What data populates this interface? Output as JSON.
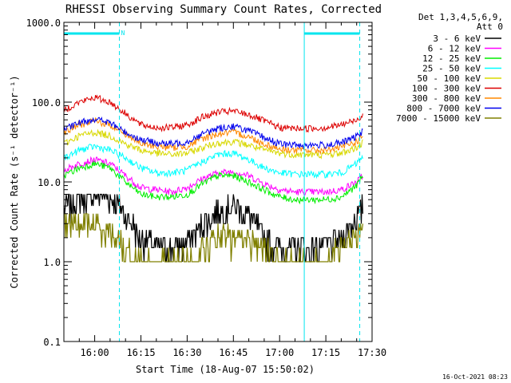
{
  "chart_data": {
    "type": "line",
    "title": "RHESSI Observing Summary Count Rates, Corrected",
    "xlabel": "Start Time (18-Aug-07 15:50:02)",
    "ylabel": "Corrected Count Rate (s⁻¹ detector⁻¹)",
    "yscale": "log",
    "ylim": [
      0.1,
      1000
    ],
    "xlim": [
      "15:50",
      "17:30"
    ],
    "xticks": [
      "16:00",
      "16:15",
      "16:30",
      "16:45",
      "17:00",
      "17:15",
      "17:30"
    ],
    "yticks": [
      "0.1",
      "1.0",
      "10.0",
      "100.0",
      "1000.0"
    ],
    "legend_header": [
      "Det 1,3,4,5,6,9,",
      "Att 0"
    ],
    "legend_position": "top-right",
    "timestamp": "16-Oct-2021 08:23",
    "flag_label": "N",
    "flag_bars": [
      {
        "start": "15:50",
        "end": "16:08"
      },
      {
        "start": "17:08",
        "end": "17:26"
      }
    ],
    "vertical_markers": [
      {
        "time": "15:50",
        "style": "solid"
      },
      {
        "time": "16:08",
        "style": "dashed"
      },
      {
        "time": "17:08",
        "style": "solid"
      },
      {
        "time": "17:26",
        "style": "dashed"
      }
    ],
    "x_times": [
      "15:50",
      "15:55",
      "16:00",
      "16:05",
      "16:10",
      "16:15",
      "16:20",
      "16:25",
      "16:30",
      "16:35",
      "16:40",
      "16:45",
      "16:50",
      "16:55",
      "17:00",
      "17:05",
      "17:10",
      "17:15",
      "17:20",
      "17:25",
      "17:27"
    ],
    "series": [
      {
        "name": "3 - 6 keV",
        "color": "#000000",
        "values": [
          4.5,
          6.5,
          7.5,
          6.5,
          4.0,
          2.0,
          1.6,
          1.5,
          1.8,
          3.0,
          4.5,
          5.0,
          4.0,
          2.0,
          1.5,
          1.5,
          1.5,
          1.6,
          2.0,
          3.5,
          5.0
        ]
      },
      {
        "name": "6 - 12 keV",
        "color": "#ff00ff",
        "values": [
          14,
          17,
          19,
          17,
          12,
          8.5,
          8,
          7.5,
          8.5,
          11,
          13,
          13.5,
          12,
          9.5,
          8,
          7.5,
          7.5,
          7.5,
          8,
          10,
          12
        ]
      },
      {
        "name": "12 - 25 keV",
        "color": "#00ee00",
        "values": [
          12,
          15,
          17,
          15,
          10,
          7,
          6.5,
          6.5,
          7,
          9.5,
          12,
          12,
          10,
          8,
          6.5,
          6,
          6,
          6,
          6.5,
          9,
          12
        ]
      },
      {
        "name": "25 - 50 keV",
        "color": "#00ffff",
        "values": [
          20,
          25,
          28,
          25,
          20,
          15,
          13,
          13,
          14,
          18,
          22,
          23,
          19,
          15,
          13,
          12.5,
          12.5,
          12.5,
          13,
          17,
          21
        ]
      },
      {
        "name": "50 - 100 keV",
        "color": "#d8d800",
        "values": [
          30,
          38,
          42,
          38,
          30,
          25,
          23,
          22,
          23,
          27,
          31,
          32,
          29,
          25,
          23,
          22,
          22,
          22,
          23,
          27,
          31
        ]
      },
      {
        "name": "100 - 300 keV",
        "color": "#dd0000",
        "values": [
          80,
          100,
          115,
          100,
          72,
          52,
          48,
          48,
          52,
          65,
          75,
          77,
          70,
          58,
          48,
          47,
          47,
          48,
          52,
          60,
          70
        ]
      },
      {
        "name": "300 - 800 keV",
        "color": "#ff8800",
        "values": [
          42,
          52,
          58,
          52,
          40,
          30,
          28,
          27,
          28,
          35,
          40,
          42,
          37,
          30,
          26,
          25,
          25,
          25,
          27,
          32,
          38
        ]
      },
      {
        "name": "800 - 7000 keV",
        "color": "#0000ee",
        "values": [
          45,
          55,
          62,
          55,
          42,
          34,
          31,
          30,
          32,
          40,
          47,
          50,
          44,
          36,
          30,
          29,
          29,
          29,
          31,
          37,
          44
        ]
      },
      {
        "name": "7000 - 15000 keV",
        "color": "#808000",
        "values": [
          3,
          3,
          3,
          2.5,
          1.5,
          1,
          1,
          1,
          1,
          1.5,
          2,
          2,
          2,
          1.5,
          1,
          1,
          1,
          1,
          1.5,
          2,
          2.5
        ]
      }
    ]
  }
}
